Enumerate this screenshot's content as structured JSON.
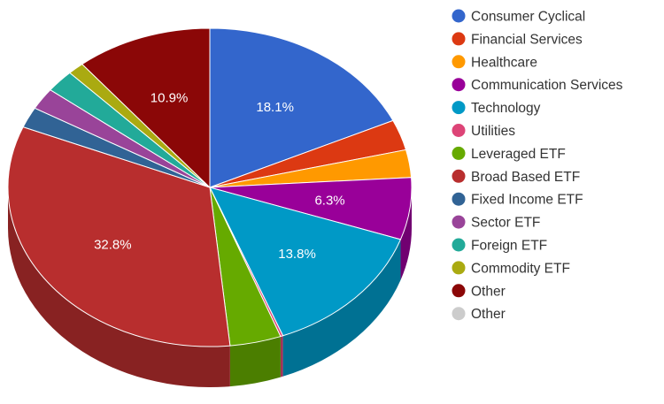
{
  "chart_data": {
    "type": "pie",
    "style": "3d",
    "legend_position": "right",
    "slices": [
      {
        "name": "Consumer Cyclical",
        "value": 18.1,
        "color": "#3366cc",
        "label": "18.1%"
      },
      {
        "name": "Financial Services",
        "value": 3.1,
        "color": "#dc3912",
        "label": ""
      },
      {
        "name": "Healthcare",
        "value": 2.8,
        "color": "#ff9900",
        "label": ""
      },
      {
        "name": "Communication Services",
        "value": 6.3,
        "color": "#990099",
        "label": "6.3%"
      },
      {
        "name": "Technology",
        "value": 13.8,
        "color": "#0099c6",
        "label": "13.8%"
      },
      {
        "name": "Utilities",
        "value": 0.2,
        "color": "#dd4477",
        "label": ""
      },
      {
        "name": "Leveraged ETF",
        "value": 4.1,
        "color": "#66aa00",
        "label": ""
      },
      {
        "name": "Broad Based ETF",
        "value": 32.8,
        "color": "#b82e2e",
        "label": "32.8%"
      },
      {
        "name": "Fixed Income ETF",
        "value": 2.1,
        "color": "#316395",
        "label": ""
      },
      {
        "name": "Sector ETF",
        "value": 2.2,
        "color": "#994499",
        "label": ""
      },
      {
        "name": "Foreign ETF",
        "value": 2.3,
        "color": "#22aa99",
        "label": ""
      },
      {
        "name": "Commodity ETF",
        "value": 1.3,
        "color": "#aaaa11",
        "label": ""
      },
      {
        "name": "Other",
        "value": 10.9,
        "color": "#8b0707",
        "label": "10.9%"
      },
      {
        "name": "Other",
        "value": 0.0,
        "color": "#cccccc",
        "label": ""
      }
    ]
  }
}
